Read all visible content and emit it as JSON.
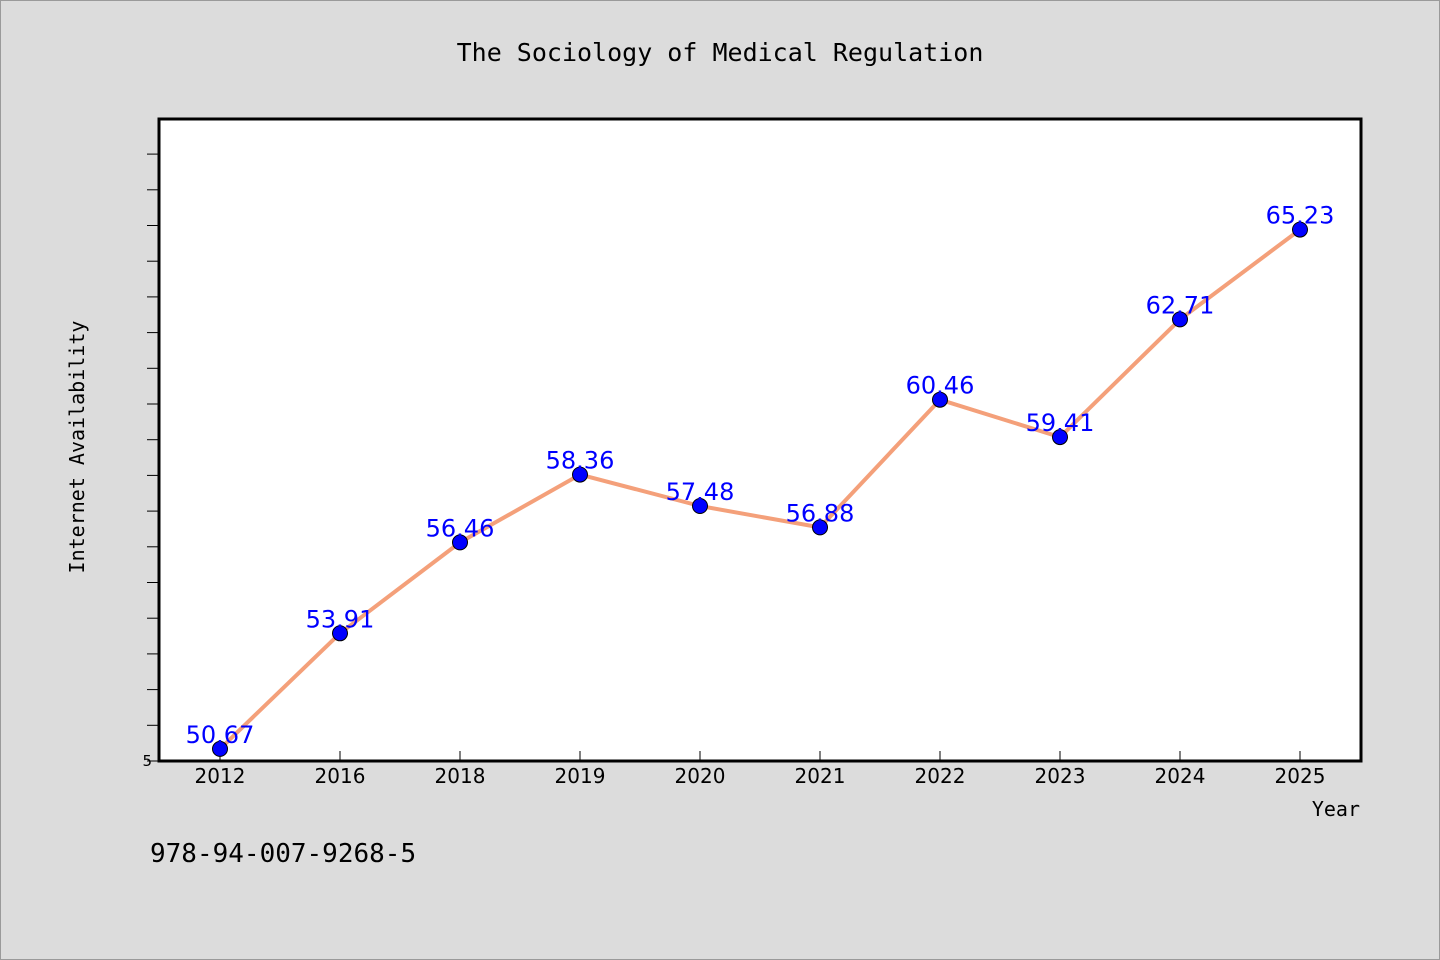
{
  "chart_data": {
    "type": "line",
    "title": "The Sociology of Medical Regulation",
    "xlabel": "Year",
    "ylabel": "Internet Availability",
    "categories": [
      "2012",
      "2016",
      "2018",
      "2019",
      "2020",
      "2021",
      "2022",
      "2023",
      "2024",
      "2025"
    ],
    "series": [
      {
        "values": [
          50.67,
          53.91,
          56.46,
          58.36,
          57.48,
          56.88,
          60.46,
          59.41,
          62.71,
          65.23
        ],
        "line_color": "#f4a07a",
        "marker_color": "#0000ff",
        "label_color": "#0000ff"
      }
    ],
    "data_labels": [
      "50.67",
      "53.91",
      "56.46",
      "58.36",
      "57.48",
      "56.88",
      "60.46",
      "59.41",
      "62.71",
      "65.23"
    ],
    "ylim": [
      50.33,
      68.33
    ],
    "y_tick_label": "5",
    "grid": false,
    "legend": "none"
  },
  "footer": {
    "isbn": "978-94-007-9268-5"
  },
  "colors": {
    "background": "#dcdcdc",
    "plot_background": "#ffffff"
  }
}
